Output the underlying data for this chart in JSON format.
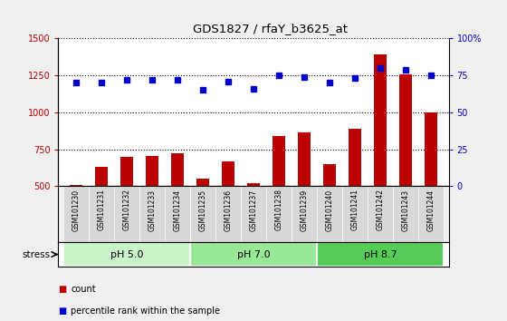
{
  "title": "GDS1827 / rfaY_b3625_at",
  "samples": [
    "GSM101230",
    "GSM101231",
    "GSM101232",
    "GSM101233",
    "GSM101234",
    "GSM101235",
    "GSM101236",
    "GSM101237",
    "GSM101238",
    "GSM101239",
    "GSM101240",
    "GSM101241",
    "GSM101242",
    "GSM101243",
    "GSM101244"
  ],
  "counts": [
    510,
    630,
    700,
    705,
    720,
    550,
    665,
    520,
    840,
    865,
    650,
    890,
    1390,
    1260,
    1000
  ],
  "percentile_raw": [
    70,
    70,
    72,
    72,
    72,
    65,
    71,
    66,
    75,
    74,
    70,
    73,
    80,
    79,
    75
  ],
  "groups": [
    {
      "label": "pH 5.0",
      "start": 0,
      "end": 4,
      "color": "#c8f5c8"
    },
    {
      "label": "pH 7.0",
      "start": 5,
      "end": 9,
      "color": "#98e898"
    },
    {
      "label": "pH 8.7",
      "start": 10,
      "end": 14,
      "color": "#55cc55"
    }
  ],
  "stress_label": "stress",
  "bar_color": "#bb0000",
  "dot_color": "#0000cc",
  "ylim_left": [
    500,
    1500
  ],
  "ylim_right": [
    0,
    100
  ],
  "yticks_left": [
    500,
    750,
    1000,
    1250,
    1500
  ],
  "yticks_right": [
    0,
    25,
    50,
    75,
    100
  ],
  "background_color": "#f0f0f0",
  "plot_bg": "#ffffff",
  "xtick_bg": "#d8d8d8",
  "legend_count_color": "#bb0000",
  "legend_dot_color": "#0000cc"
}
